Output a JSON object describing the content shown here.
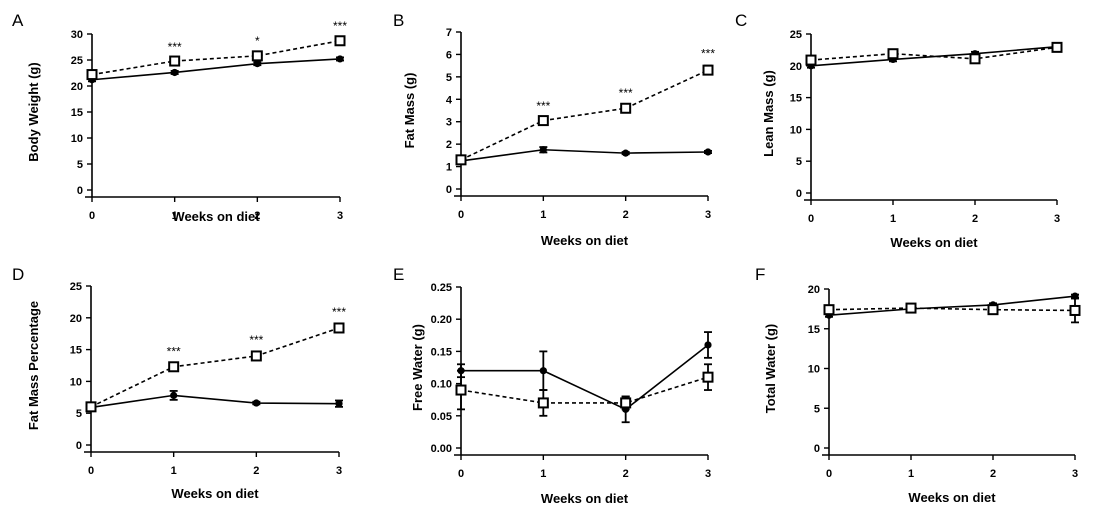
{
  "chart_data": [
    {
      "type": "line",
      "panel": "A",
      "xlabel": "Weeks on diet",
      "ylabel": "Body  Weight (g)",
      "x": [
        0,
        1,
        2,
        3
      ],
      "xticks": [
        "0",
        "1",
        "2",
        "3"
      ],
      "ylim": [
        0,
        30
      ],
      "yticks": [
        "0",
        "5",
        "10",
        "15",
        "20",
        "25",
        "30"
      ],
      "series": [
        {
          "name": "solid",
          "style": "solid",
          "marker": "circle",
          "values": [
            21.2,
            22.6,
            24.3,
            25.2
          ],
          "errors": [
            0.3,
            0.3,
            0.3,
            0.3
          ]
        },
        {
          "name": "dashed",
          "style": "dashed",
          "marker": "square",
          "values": [
            22.2,
            24.8,
            25.8,
            28.7
          ],
          "errors": [
            0.5,
            0.4,
            0.5,
            0.5
          ]
        }
      ],
      "annotations": [
        {
          "x": 1,
          "text": "***"
        },
        {
          "x": 2,
          "text": "*"
        },
        {
          "x": 3,
          "text": "***"
        }
      ]
    },
    {
      "type": "line",
      "panel": "B",
      "xlabel": "Weeks on diet",
      "ylabel": "Fat  Mass (g)",
      "x": [
        0,
        1,
        2,
        3
      ],
      "xticks": [
        "0",
        "1",
        "2",
        "3"
      ],
      "ylim": [
        0,
        7
      ],
      "yticks": [
        "0",
        "1",
        "2",
        "3",
        "4",
        "5",
        "6",
        "7"
      ],
      "series": [
        {
          "name": "solid",
          "style": "solid",
          "marker": "circle",
          "values": [
            1.25,
            1.75,
            1.6,
            1.65
          ],
          "errors": [
            0.08,
            0.12,
            0.05,
            0.05
          ]
        },
        {
          "name": "dashed",
          "style": "dashed",
          "marker": "square",
          "values": [
            1.3,
            3.05,
            3.6,
            5.3
          ],
          "errors": [
            0.08,
            0.12,
            0.15,
            0.2
          ]
        }
      ],
      "annotations": [
        {
          "x": 1,
          "text": "***"
        },
        {
          "x": 2,
          "text": "***"
        },
        {
          "x": 3,
          "text": "***"
        }
      ]
    },
    {
      "type": "line",
      "panel": "C",
      "xlabel": "Weeks on diet",
      "ylabel": "Lean  Mass (g)",
      "x": [
        0,
        1,
        2,
        3
      ],
      "xticks": [
        "0",
        "1",
        "2",
        "3"
      ],
      "ylim": [
        0,
        25
      ],
      "yticks": [
        "0",
        "5",
        "10",
        "15",
        "20",
        "25"
      ],
      "series": [
        {
          "name": "solid",
          "style": "solid",
          "marker": "circle",
          "values": [
            20.0,
            21.0,
            21.9,
            23.0
          ],
          "errors": [
            0.3,
            0.3,
            0.3,
            0.3
          ]
        },
        {
          "name": "dashed",
          "style": "dashed",
          "marker": "square",
          "values": [
            20.9,
            21.9,
            21.1,
            22.9
          ],
          "errors": [
            0.4,
            0.4,
            0.4,
            0.4
          ]
        }
      ],
      "annotations": []
    },
    {
      "type": "line",
      "panel": "D",
      "xlabel": "Weeks on diet",
      "ylabel": "Fat Mass Percentage",
      "x": [
        0,
        1,
        2,
        3
      ],
      "xticks": [
        "0",
        "1",
        "2",
        "3"
      ],
      "ylim": [
        0,
        25
      ],
      "yticks": [
        "0",
        "5",
        "10",
        "15",
        "20",
        "25"
      ],
      "series": [
        {
          "name": "solid",
          "style": "solid",
          "marker": "circle",
          "values": [
            5.9,
            7.8,
            6.6,
            6.5
          ],
          "errors": [
            0.3,
            0.7,
            0.2,
            0.5
          ]
        },
        {
          "name": "dashed",
          "style": "dashed",
          "marker": "square",
          "values": [
            6.0,
            12.3,
            14.0,
            18.4
          ],
          "errors": [
            0.3,
            0.5,
            0.6,
            0.6
          ]
        }
      ],
      "annotations": [
        {
          "x": 1,
          "text": "***"
        },
        {
          "x": 2,
          "text": "***"
        },
        {
          "x": 3,
          "text": "***"
        }
      ]
    },
    {
      "type": "line",
      "panel": "E",
      "xlabel": "Weeks on diet",
      "ylabel": "Free Water (g)",
      "x": [
        0,
        1,
        2,
        3
      ],
      "xticks": [
        "0",
        "1",
        "2",
        "3"
      ],
      "ylim": [
        0,
        0.25
      ],
      "yticks": [
        "0.00",
        "0.05",
        "0.10",
        "0.15",
        "0.20",
        "0.25"
      ],
      "series": [
        {
          "name": "solid",
          "style": "solid",
          "marker": "circle",
          "values": [
            0.12,
            0.12,
            0.06,
            0.16
          ],
          "errors": [
            0.01,
            0.03,
            0.02,
            0.02
          ]
        },
        {
          "name": "dashed",
          "style": "dashed",
          "marker": "square",
          "values": [
            0.09,
            0.07,
            0.07,
            0.11
          ],
          "errors": [
            0.03,
            0.02,
            0.01,
            0.02
          ]
        }
      ],
      "annotations": []
    },
    {
      "type": "line",
      "panel": "F",
      "xlabel": "Weeks on diet",
      "ylabel": "Total Water (g)",
      "x": [
        0,
        1,
        2,
        3
      ],
      "xticks": [
        "0",
        "1",
        "2",
        "3"
      ],
      "ylim": [
        0,
        20
      ],
      "yticks": [
        "0",
        "5",
        "10",
        "15",
        "20"
      ],
      "series": [
        {
          "name": "solid",
          "style": "solid",
          "marker": "circle",
          "values": [
            16.7,
            17.5,
            18.0,
            19.1
          ],
          "errors": [
            0.2,
            0.2,
            0.2,
            0.2
          ]
        },
        {
          "name": "dashed",
          "style": "dashed",
          "marker": "square",
          "values": [
            17.4,
            17.6,
            17.4,
            17.3
          ],
          "errors": [
            0.3,
            0.3,
            0.4,
            1.5
          ]
        }
      ],
      "annotations": []
    }
  ]
}
